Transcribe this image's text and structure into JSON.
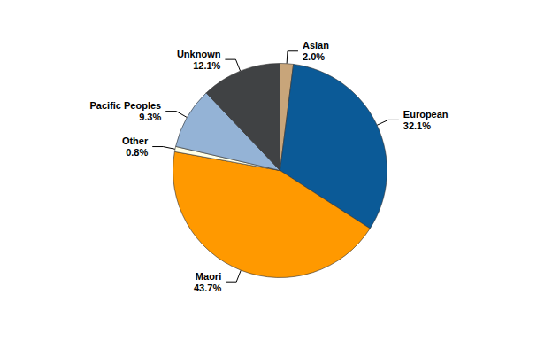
{
  "chart_data": {
    "type": "pie",
    "categories": [
      "Asian",
      "European",
      "Maori",
      "Other",
      "Pacific Peoples",
      "Unknown"
    ],
    "values": [
      2.0,
      32.1,
      43.7,
      0.8,
      9.3,
      12.1
    ],
    "value_labels": [
      "2.0%",
      "32.1%",
      "43.7%",
      "0.8%",
      "9.3%",
      "12.1%"
    ],
    "colors": [
      "#c8a57a",
      "#0b5a97",
      "#ff9900",
      "#ffffe6",
      "#94b3d6",
      "#404244"
    ],
    "data_labels": true
  }
}
